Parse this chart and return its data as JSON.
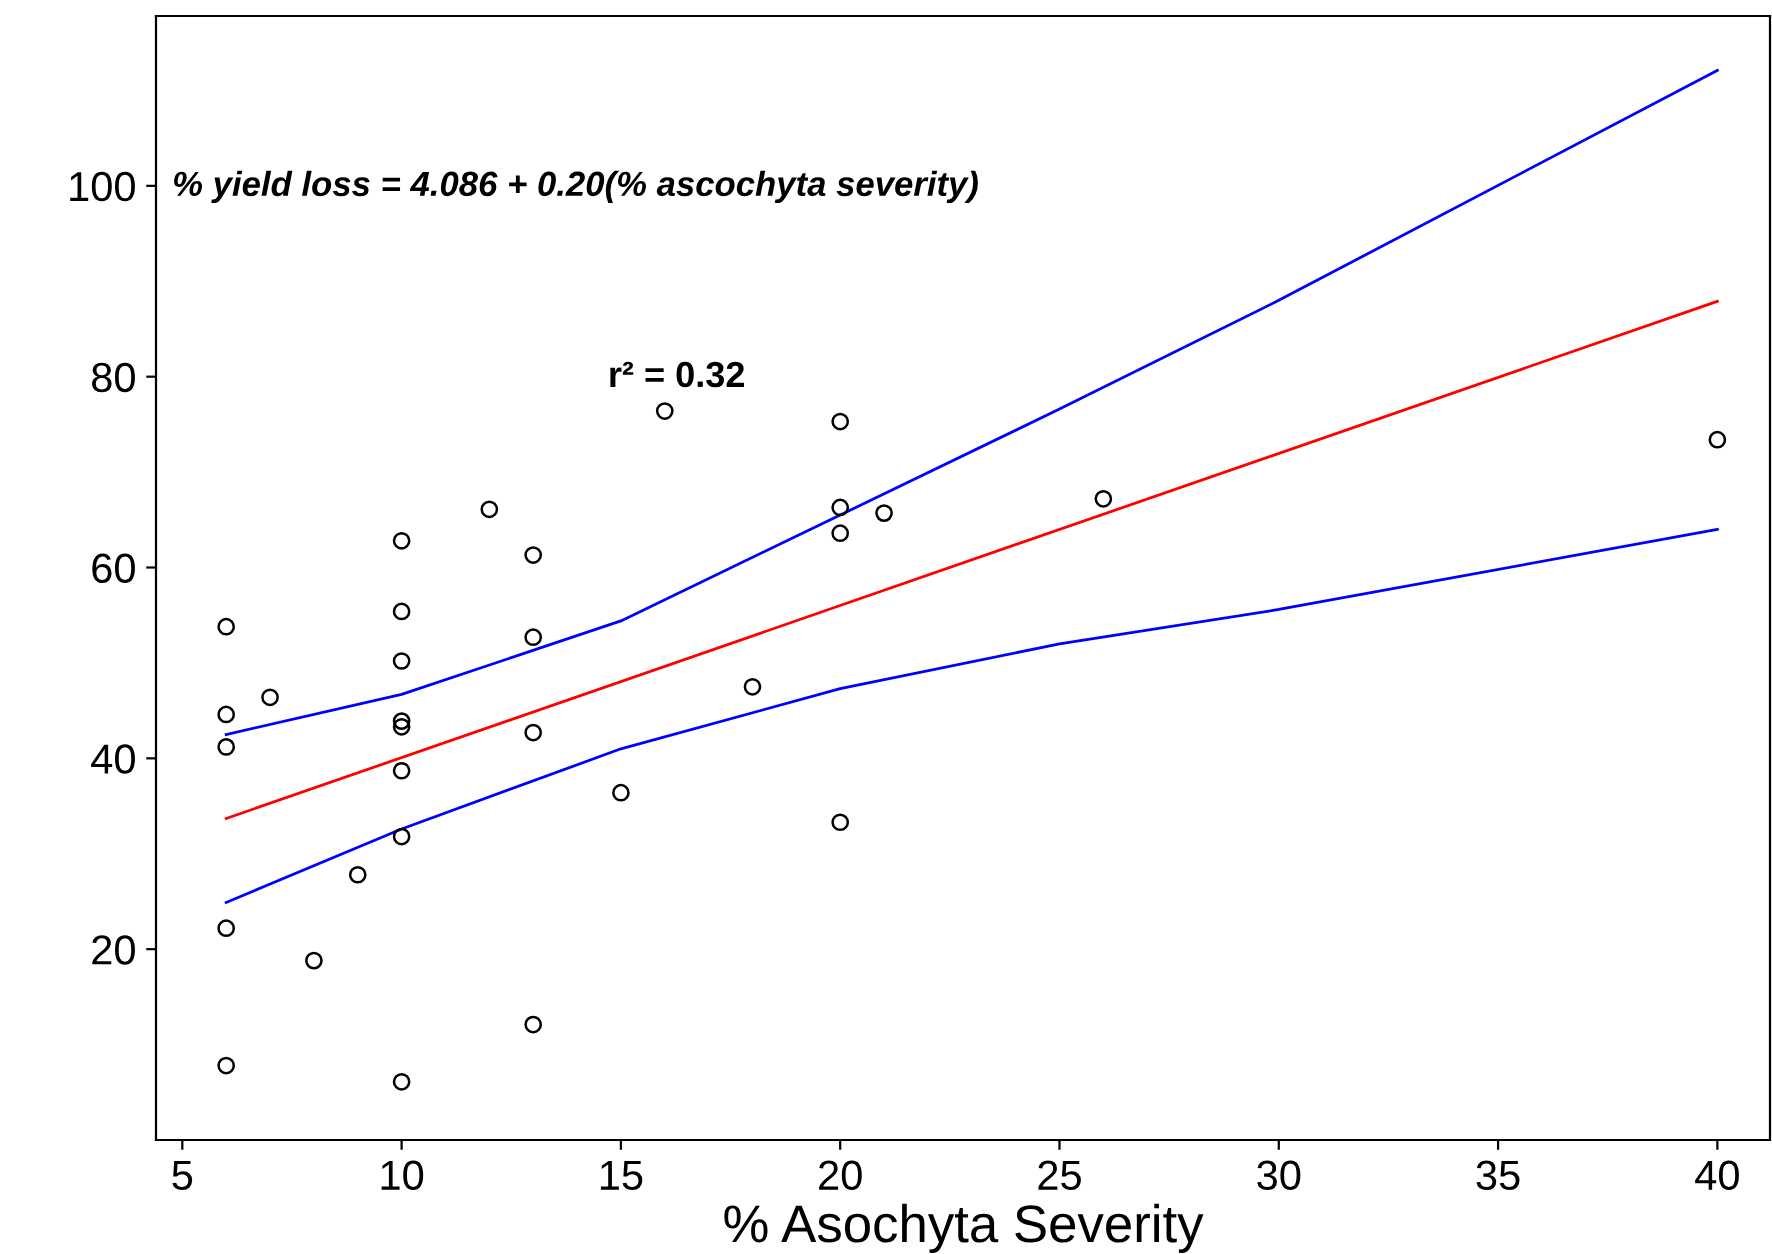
{
  "chart_data": {
    "type": "scatter",
    "xlabel": "% Asochyta Severity",
    "annotations": [
      "% yield loss = 4.086 + 0.20(% ascochyta severity)",
      "r² = 0.32"
    ],
    "xlim": [
      4.4,
      41.2
    ],
    "ylim": [
      0,
      117.8
    ],
    "xticks": [
      5,
      10,
      15,
      20,
      25,
      30,
      35,
      40
    ],
    "yticks": [
      20,
      40,
      60,
      80,
      100
    ],
    "grid": false,
    "series": [
      {
        "color": "#000000",
        "marker": "circle",
        "x": [
          6,
          6,
          6,
          6,
          6,
          7,
          8,
          9,
          10,
          10,
          10,
          10,
          10,
          10,
          10,
          10,
          12,
          13,
          13,
          13,
          13,
          15,
          16,
          18,
          20,
          20,
          20,
          20,
          21,
          26,
          40
        ],
        "values": [
          7.8,
          22.2,
          41.2,
          44.6,
          53.8,
          46.4,
          18.8,
          27.8,
          6.1,
          31.8,
          38.7,
          43.3,
          43.9,
          50.2,
          55.4,
          62.8,
          66.1,
          12.1,
          42.7,
          52.7,
          61.3,
          36.4,
          76.4,
          47.5,
          33.3,
          63.6,
          66.3,
          75.3,
          65.7,
          67.2,
          73.4
        ]
      },
      {
        "type": "line",
        "color": "#ff0000",
        "marker": "none",
        "x": [
          6,
          40
        ],
        "values": [
          33.7,
          87.9
        ]
      },
      {
        "type": "line",
        "color": "#0000ff",
        "marker": "none",
        "x": [
          6,
          10,
          15,
          20,
          25,
          30,
          40
        ],
        "values": [
          42.5,
          46.7,
          54.4,
          65.5,
          76.6,
          88,
          112.1
        ]
      },
      {
        "type": "line",
        "color": "#0000ff",
        "marker": "none",
        "x": [
          6,
          10,
          15,
          20,
          25,
          30,
          40
        ],
        "values": [
          24.9,
          32.6,
          41,
          47.3,
          52,
          55.6,
          64
        ]
      }
    ]
  }
}
